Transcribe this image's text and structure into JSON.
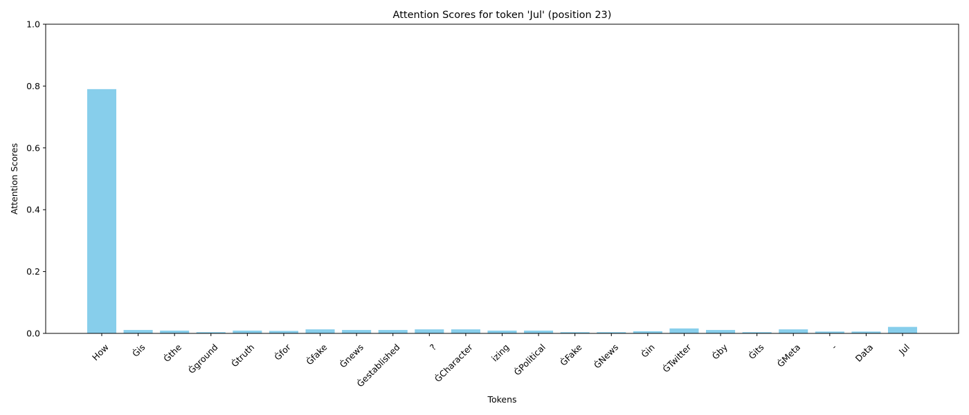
{
  "chart_data": {
    "type": "bar",
    "title": "Attention Scores for token 'Jul' (position 23)",
    "xlabel": "Tokens",
    "ylabel": "Attention Scores",
    "ylim": [
      0,
      1.0
    ],
    "yticks": [
      "0.0",
      "0.2",
      "0.4",
      "0.6",
      "0.8",
      "1.0"
    ],
    "grid": false,
    "bar_color": "#87ceeb",
    "categories": [
      "How",
      "Ġis",
      "Ġthe",
      "Ġground",
      "Ġtruth",
      "Ġfor",
      "Ġfake",
      "Ġnews",
      "Ġestablished",
      "?",
      "ĠCharacter",
      "izing",
      "ĠPolitical",
      "ĠFake",
      "ĠNews",
      "Ġin",
      "ĠTwitter",
      "Ġby",
      "Ġits",
      "ĠMeta",
      "-",
      "Data",
      "Jul"
    ],
    "values": [
      0.79,
      0.011,
      0.009,
      0.004,
      0.009,
      0.008,
      0.013,
      0.011,
      0.011,
      0.013,
      0.013,
      0.009,
      0.009,
      0.004,
      0.004,
      0.007,
      0.016,
      0.011,
      0.004,
      0.013,
      0.006,
      0.006,
      0.021
    ]
  }
}
